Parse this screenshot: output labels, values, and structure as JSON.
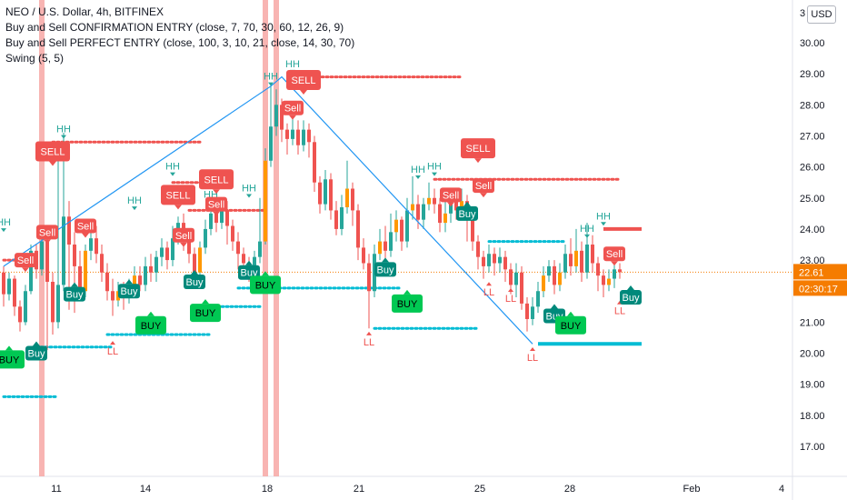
{
  "legend": {
    "symbol": "NEO / U.S. Dollar, 4h, BITFINEX",
    "indicator1": "Buy and Sell CONFIRMATION ENTRY (close, 7, 70, 30, 60, 12, 26, 9)",
    "indicator2": "Buy and Sell PERFECT ENTRY (close, 100, 3, 10, 21, close, 14, 30, 70)",
    "indicator3": "Swing (5, 5)"
  },
  "currency_button": "USD",
  "top_tick_partial": "3",
  "price_tag": {
    "price": "22.61",
    "countdown": "02:30:17",
    "color": "#f57c00"
  },
  "colors": {
    "up": "#26a69a",
    "down": "#ef5350",
    "upbody": "#ff9800",
    "sell": "#ef5350",
    "buy": "#00c853",
    "line": "#2196f3",
    "vband": "#f7a7a4"
  },
  "chart_data": {
    "type": "candlestick",
    "y_ticks": [
      "17.00",
      "18.00",
      "19.00",
      "20.00",
      "21.00",
      "22.00",
      "23.00",
      "24.00",
      "25.00",
      "26.00",
      "27.00",
      "28.00",
      "29.00",
      "30.00"
    ],
    "ylim": [
      16.3,
      31.2
    ],
    "x_ticks": [
      "11",
      "14",
      "18",
      "21",
      "25",
      "28",
      "Feb",
      "4"
    ],
    "last_price": 22.61,
    "candles": [
      [
        22.6,
        21.9,
        22.8,
        21.5
      ],
      [
        21.9,
        22.4,
        22.6,
        21.7
      ],
      [
        22.4,
        21.5,
        22.5,
        21.2
      ],
      [
        21.5,
        21.0,
        21.7,
        20.7
      ],
      [
        21.0,
        22.0,
        22.2,
        20.9
      ],
      [
        22.0,
        23.3,
        23.5,
        21.9
      ],
      [
        23.3,
        22.7,
        23.5,
        22.4
      ],
      [
        22.7,
        23.6,
        24.0,
        22.5
      ],
      [
        23.6,
        22.3,
        23.8,
        20.1
      ],
      [
        22.3,
        21.0,
        22.6,
        20.6
      ],
      [
        21.0,
        22.2,
        26.8,
        20.8
      ],
      [
        22.2,
        24.4,
        27.1,
        22.0
      ],
      [
        24.4,
        23.5,
        24.9,
        21.4
      ],
      [
        23.5,
        22.8,
        23.9,
        21.3
      ],
      [
        22.8,
        22.0,
        23.3,
        21.8
      ],
      [
        22.0,
        23.3,
        23.5,
        21.8
      ],
      [
        23.3,
        23.7,
        24.0,
        23.0
      ],
      [
        23.7,
        23.2,
        24.1,
        22.9
      ],
      [
        23.2,
        22.6,
        23.5,
        22.3
      ],
      [
        22.6,
        22.0,
        22.9,
        21.7
      ],
      [
        22.0,
        21.7,
        22.4,
        21.2
      ],
      [
        21.7,
        22.0,
        22.3,
        21.5
      ],
      [
        22.0,
        21.8,
        22.3,
        21.4
      ],
      [
        21.8,
        22.1,
        22.4,
        21.6
      ],
      [
        22.1,
        22.5,
        22.8,
        21.9
      ],
      [
        22.5,
        22.2,
        22.8,
        22.0
      ],
      [
        22.2,
        22.8,
        23.1,
        22.0
      ],
      [
        22.8,
        22.6,
        23.2,
        22.3
      ],
      [
        22.6,
        23.1,
        23.3,
        22.3
      ],
      [
        23.1,
        23.4,
        23.7,
        22.8
      ],
      [
        23.4,
        23.0,
        23.6,
        22.7
      ],
      [
        23.0,
        23.7,
        24.1,
        22.8
      ],
      [
        23.7,
        24.2,
        24.4,
        23.5
      ],
      [
        24.2,
        23.6,
        24.5,
        23.3
      ],
      [
        23.6,
        23.2,
        23.9,
        22.9
      ],
      [
        23.2,
        22.6,
        23.4,
        22.2
      ],
      [
        22.6,
        23.4,
        23.6,
        22.4
      ],
      [
        23.4,
        24.0,
        24.3,
        23.2
      ],
      [
        24.0,
        24.5,
        24.8,
        23.8
      ],
      [
        24.5,
        24.2,
        24.9,
        23.9
      ],
      [
        24.2,
        24.6,
        25.0,
        24.0
      ],
      [
        24.6,
        24.1,
        24.9,
        23.5
      ],
      [
        24.1,
        23.6,
        24.3,
        23.3
      ],
      [
        23.6,
        23.2,
        23.9,
        22.7
      ],
      [
        23.2,
        22.9,
        23.4,
        22.5
      ],
      [
        22.9,
        22.6,
        23.1,
        22.3
      ],
      [
        22.6,
        23.1,
        23.3,
        22.4
      ],
      [
        23.1,
        23.6,
        25.0,
        22.9
      ],
      [
        23.6,
        26.2,
        26.6,
        23.5
      ],
      [
        26.2,
        27.3,
        28.6,
        26.0
      ],
      [
        27.3,
        28.0,
        28.5,
        27.0
      ],
      [
        28.0,
        27.2,
        28.2,
        26.8
      ],
      [
        27.2,
        26.9,
        27.4,
        26.4
      ],
      [
        26.9,
        27.2,
        27.6,
        26.7
      ],
      [
        27.2,
        26.7,
        27.5,
        26.4
      ],
      [
        26.7,
        27.2,
        27.5,
        26.5
      ],
      [
        27.2,
        26.8,
        27.4,
        26.3
      ],
      [
        26.8,
        25.5,
        27.0,
        25.2
      ],
      [
        25.5,
        24.8,
        25.7,
        24.5
      ],
      [
        24.8,
        25.6,
        25.9,
        24.6
      ],
      [
        25.6,
        24.6,
        25.8,
        24.3
      ],
      [
        24.6,
        24.0,
        24.9,
        23.8
      ],
      [
        24.0,
        24.7,
        25.1,
        23.8
      ],
      [
        24.7,
        25.3,
        26.2,
        24.5
      ],
      [
        25.3,
        24.6,
        25.5,
        24.1
      ],
      [
        24.6,
        23.4,
        24.8,
        23.0
      ],
      [
        23.4,
        22.9,
        23.7,
        22.7
      ],
      [
        22.9,
        22.0,
        23.2,
        20.8
      ],
      [
        22.0,
        23.2,
        23.5,
        21.8
      ],
      [
        23.2,
        23.6,
        24.0,
        23.0
      ],
      [
        23.6,
        23.3,
        24.1,
        23.0
      ],
      [
        23.3,
        23.9,
        24.5,
        23.1
      ],
      [
        23.9,
        24.3,
        24.6,
        23.6
      ],
      [
        24.3,
        23.6,
        24.4,
        23.3
      ],
      [
        23.6,
        24.6,
        25.0,
        23.4
      ],
      [
        24.6,
        24.8,
        25.7,
        24.3
      ],
      [
        24.8,
        24.3,
        25.1,
        24.0
      ],
      [
        24.3,
        24.8,
        25.0,
        24.0
      ],
      [
        24.8,
        25.0,
        25.5,
        24.6
      ],
      [
        25.0,
        24.8,
        25.3,
        24.5
      ],
      [
        24.8,
        24.2,
        25.0,
        23.9
      ],
      [
        24.2,
        24.5,
        24.9,
        23.9
      ],
      [
        24.5,
        24.9,
        25.1,
        24.2
      ],
      [
        24.9,
        24.6,
        25.2,
        24.3
      ],
      [
        24.6,
        24.9,
        25.3,
        24.4
      ],
      [
        24.9,
        24.3,
        25.1,
        23.6
      ],
      [
        24.3,
        23.6,
        24.5,
        23.3
      ],
      [
        23.6,
        23.1,
        23.8,
        22.7
      ],
      [
        23.1,
        22.8,
        23.3,
        22.4
      ],
      [
        22.8,
        23.2,
        23.5,
        22.6
      ],
      [
        23.2,
        22.9,
        23.4,
        22.5
      ],
      [
        22.9,
        23.1,
        23.4,
        22.6
      ],
      [
        23.1,
        22.7,
        23.3,
        22.3
      ],
      [
        22.7,
        22.2,
        22.9,
        21.9
      ],
      [
        22.2,
        22.6,
        22.9,
        21.8
      ],
      [
        22.6,
        21.6,
        22.8,
        21.4
      ],
      [
        21.6,
        21.1,
        21.8,
        20.7
      ],
      [
        21.1,
        21.5,
        21.8,
        20.9
      ],
      [
        21.5,
        22.0,
        22.3,
        21.3
      ],
      [
        22.0,
        22.5,
        22.8,
        21.8
      ],
      [
        22.5,
        22.8,
        23.0,
        22.3
      ],
      [
        22.8,
        22.2,
        23.0,
        21.9
      ],
      [
        22.2,
        22.6,
        22.9,
        22.0
      ],
      [
        22.6,
        23.2,
        23.5,
        22.4
      ],
      [
        23.2,
        22.8,
        23.7,
        22.5
      ],
      [
        22.8,
        23.3,
        24.0,
        22.6
      ],
      [
        23.3,
        22.6,
        23.6,
        22.3
      ],
      [
        22.6,
        23.5,
        24.2,
        22.4
      ],
      [
        23.5,
        22.9,
        23.8,
        22.6
      ],
      [
        22.9,
        22.5,
        23.1,
        22.0
      ],
      [
        22.5,
        22.2,
        22.7,
        21.8
      ],
      [
        22.2,
        22.4,
        22.7,
        22.0
      ],
      [
        22.4,
        22.7,
        22.9,
        22.1
      ],
      [
        22.7,
        22.61,
        22.9,
        22.4
      ]
    ],
    "swing_line": [
      [
        0,
        22.8
      ],
      [
        49,
        28.6
      ],
      [
        51,
        28.9
      ],
      [
        97,
        20.3
      ]
    ],
    "swing_labels": [
      {
        "text": "HH",
        "i": 0,
        "v": 24.2,
        "c": "#26a69a"
      },
      {
        "text": "HH",
        "i": 11,
        "v": 27.2,
        "c": "#26a69a"
      },
      {
        "text": "HH",
        "i": 24,
        "v": 24.9,
        "c": "#26a69a"
      },
      {
        "text": "HH",
        "i": 31,
        "v": 26.0,
        "c": "#26a69a"
      },
      {
        "text": "HH",
        "i": 38,
        "v": 25.1,
        "c": "#26a69a"
      },
      {
        "text": "HH",
        "i": 45,
        "v": 25.3,
        "c": "#26a69a"
      },
      {
        "text": "HH",
        "i": 49,
        "v": 28.9,
        "c": "#26a69a"
      },
      {
        "text": "HH",
        "i": 53,
        "v": 29.3,
        "c": "#26a69a"
      },
      {
        "text": "HH",
        "i": 76,
        "v": 25.9,
        "c": "#26a69a"
      },
      {
        "text": "HH",
        "i": 79,
        "v": 26.0,
        "c": "#26a69a"
      },
      {
        "text": "HH",
        "i": 107,
        "v": 24.0,
        "c": "#26a69a"
      },
      {
        "text": "HH",
        "i": 110,
        "v": 24.4,
        "c": "#26a69a"
      },
      {
        "text": "LL",
        "i": 20,
        "v": 20.1,
        "c": "#ef5350"
      },
      {
        "text": "LL",
        "i": 67,
        "v": 20.4,
        "c": "#ef5350"
      },
      {
        "text": "LL",
        "i": 89,
        "v": 22.0,
        "c": "#ef5350"
      },
      {
        "text": "LL",
        "i": 93,
        "v": 21.8,
        "c": "#ef5350"
      },
      {
        "text": "LL",
        "i": 97,
        "v": 19.9,
        "c": "#ef5350"
      },
      {
        "text": "LL",
        "i": 113,
        "v": 21.4,
        "c": "#ef5350"
      }
    ],
    "signals": [
      {
        "text": "SELL",
        "i": 9,
        "v": 26.5,
        "type": "sell-big"
      },
      {
        "text": "SELL",
        "i": 32,
        "v": 25.1,
        "type": "sell-big"
      },
      {
        "text": "SELL",
        "i": 39,
        "v": 25.6,
        "type": "sell-big"
      },
      {
        "text": "SELL",
        "i": 55,
        "v": 28.8,
        "type": "sell-big"
      },
      {
        "text": "SELL",
        "i": 87,
        "v": 26.6,
        "type": "sell-big"
      },
      {
        "text": "Sell",
        "i": 4,
        "v": 23.0,
        "type": "sell-small"
      },
      {
        "text": "Sell",
        "i": 8,
        "v": 23.9,
        "type": "sell-small"
      },
      {
        "text": "Sell",
        "i": 15,
        "v": 24.1,
        "type": "sell-small"
      },
      {
        "text": "Sell",
        "i": 33,
        "v": 23.8,
        "type": "sell-small"
      },
      {
        "text": "Sell",
        "i": 39,
        "v": 24.8,
        "type": "sell-small"
      },
      {
        "text": "Sell",
        "i": 53,
        "v": 27.9,
        "type": "sell-small"
      },
      {
        "text": "Sell",
        "i": 82,
        "v": 25.1,
        "type": "sell-small"
      },
      {
        "text": "Sell",
        "i": 88,
        "v": 25.4,
        "type": "sell-small"
      },
      {
        "text": "Sell",
        "i": 112,
        "v": 23.2,
        "type": "sell-small"
      },
      {
        "text": "Buy",
        "i": 6,
        "v": 20.0,
        "type": "buy-small"
      },
      {
        "text": "Buy",
        "i": 13,
        "v": 21.9,
        "type": "buy-small"
      },
      {
        "text": "Buy",
        "i": 23,
        "v": 22.0,
        "type": "buy-small"
      },
      {
        "text": "Buy",
        "i": 35,
        "v": 22.3,
        "type": "buy-small"
      },
      {
        "text": "Buy",
        "i": 45,
        "v": 22.6,
        "type": "buy-small"
      },
      {
        "text": "Buy",
        "i": 70,
        "v": 22.7,
        "type": "buy-small"
      },
      {
        "text": "Buy",
        "i": 85,
        "v": 24.5,
        "type": "buy-small"
      },
      {
        "text": "Buy",
        "i": 101,
        "v": 21.2,
        "type": "buy-small"
      },
      {
        "text": "Buy",
        "i": 115,
        "v": 21.8,
        "type": "buy-small"
      },
      {
        "text": "BUY",
        "i": 1,
        "v": 19.8,
        "type": "buy-big"
      },
      {
        "text": "BUY",
        "i": 27,
        "v": 20.9,
        "type": "buy-big"
      },
      {
        "text": "BUY",
        "i": 37,
        "v": 21.3,
        "type": "buy-big"
      },
      {
        "text": "BUY",
        "i": 48,
        "v": 22.2,
        "type": "buy-big"
      },
      {
        "text": "BUY",
        "i": 74,
        "v": 21.6,
        "type": "buy-big"
      },
      {
        "text": "BUY",
        "i": 104,
        "v": 20.9,
        "type": "buy-big"
      }
    ],
    "levels": [
      {
        "i0": 0,
        "i1": 5,
        "v": 23.0,
        "c": "#ef5350"
      },
      {
        "i0": 9,
        "i1": 36,
        "v": 26.8,
        "c": "#ef5350"
      },
      {
        "i0": 31,
        "i1": 40,
        "v": 25.5,
        "c": "#ef5350"
      },
      {
        "i0": 34,
        "i1": 48,
        "v": 24.6,
        "c": "#ef5350"
      },
      {
        "i0": 55,
        "i1": 84,
        "v": 28.9,
        "c": "#ef5350"
      },
      {
        "i0": 79,
        "i1": 113,
        "v": 25.6,
        "c": "#ef5350"
      },
      {
        "i0": 0,
        "i1": 10,
        "v": 18.6,
        "c": "#00bcd4"
      },
      {
        "i0": 6,
        "i1": 20,
        "v": 20.2,
        "c": "#00bcd4"
      },
      {
        "i0": 19,
        "i1": 38,
        "v": 20.6,
        "c": "#00bcd4"
      },
      {
        "i0": 35,
        "i1": 47,
        "v": 21.5,
        "c": "#00bcd4"
      },
      {
        "i0": 43,
        "i1": 73,
        "v": 22.1,
        "c": "#00bcd4"
      },
      {
        "i0": 68,
        "i1": 87,
        "v": 20.8,
        "c": "#00bcd4"
      },
      {
        "i0": 89,
        "i1": 103,
        "v": 23.6,
        "c": "#00bcd4"
      }
    ],
    "thick_levels": [
      {
        "i0": 110,
        "i1": 117,
        "v": 24.0,
        "c": "#ef5350"
      },
      {
        "i0": 98,
        "i1": 117,
        "v": 20.3,
        "c": "#00bcd4"
      }
    ],
    "vbands": [
      7,
      48,
      50
    ]
  }
}
